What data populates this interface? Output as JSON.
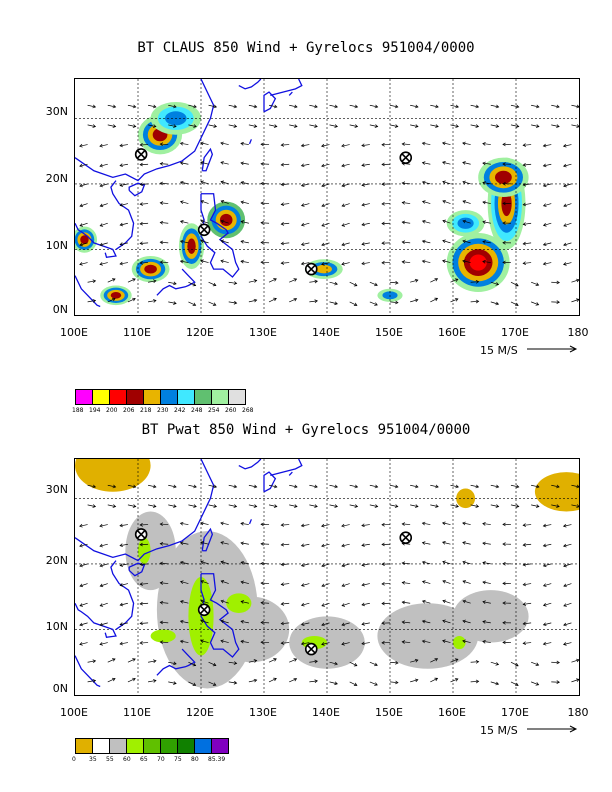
{
  "panels": [
    {
      "title": "BT CLAUS 850 Wind + Gyrelocs 951004/0000",
      "y_labels": [
        "30N",
        "20N",
        "10N",
        "0N"
      ],
      "x_labels": [
        "100E",
        "110E",
        "120E",
        "130E",
        "140E",
        "150E",
        "160E",
        "170E",
        "180"
      ],
      "scale_label": "15 M/S",
      "colorbar": {
        "colors": [
          "#ff00ff",
          "#ffff00",
          "#ff0000",
          "#a00000",
          "#e8b400",
          "#0080e0",
          "#40e8ff",
          "#60c070",
          "#a0f0a0",
          "#e0e0e0"
        ],
        "labels": [
          "188",
          "194",
          "200",
          "206",
          "218",
          "230",
          "242",
          "248",
          "254",
          "260",
          "268"
        ]
      },
      "gyre_locations": [
        [
          110.5,
          24.5
        ],
        [
          120.5,
          13
        ],
        [
          137.5,
          7
        ],
        [
          152.5,
          24
        ]
      ]
    },
    {
      "title": "BT Pwat 850 Wind + Gyrelocs 951004/0000",
      "y_labels": [
        "30N",
        "20N",
        "10N",
        "0N"
      ],
      "x_labels": [
        "100E",
        "110E",
        "120E",
        "130E",
        "140E",
        "150E",
        "160E",
        "170E",
        "180"
      ],
      "scale_label": "15 M/S",
      "colorbar": {
        "colors": [
          "#e0b000",
          "#ffffff",
          "#c0c0c0",
          "#a0f000",
          "#60c000",
          "#30a000",
          "#108000",
          "#0070e0",
          "#8000c0"
        ],
        "labels": [
          "0",
          "35",
          "55",
          "60",
          "65",
          "70",
          "75",
          "80",
          "85.39"
        ]
      },
      "gyre_locations": [
        [
          110.5,
          24.5
        ],
        [
          120.5,
          13
        ],
        [
          137.5,
          7
        ],
        [
          152.5,
          24
        ]
      ]
    }
  ]
}
